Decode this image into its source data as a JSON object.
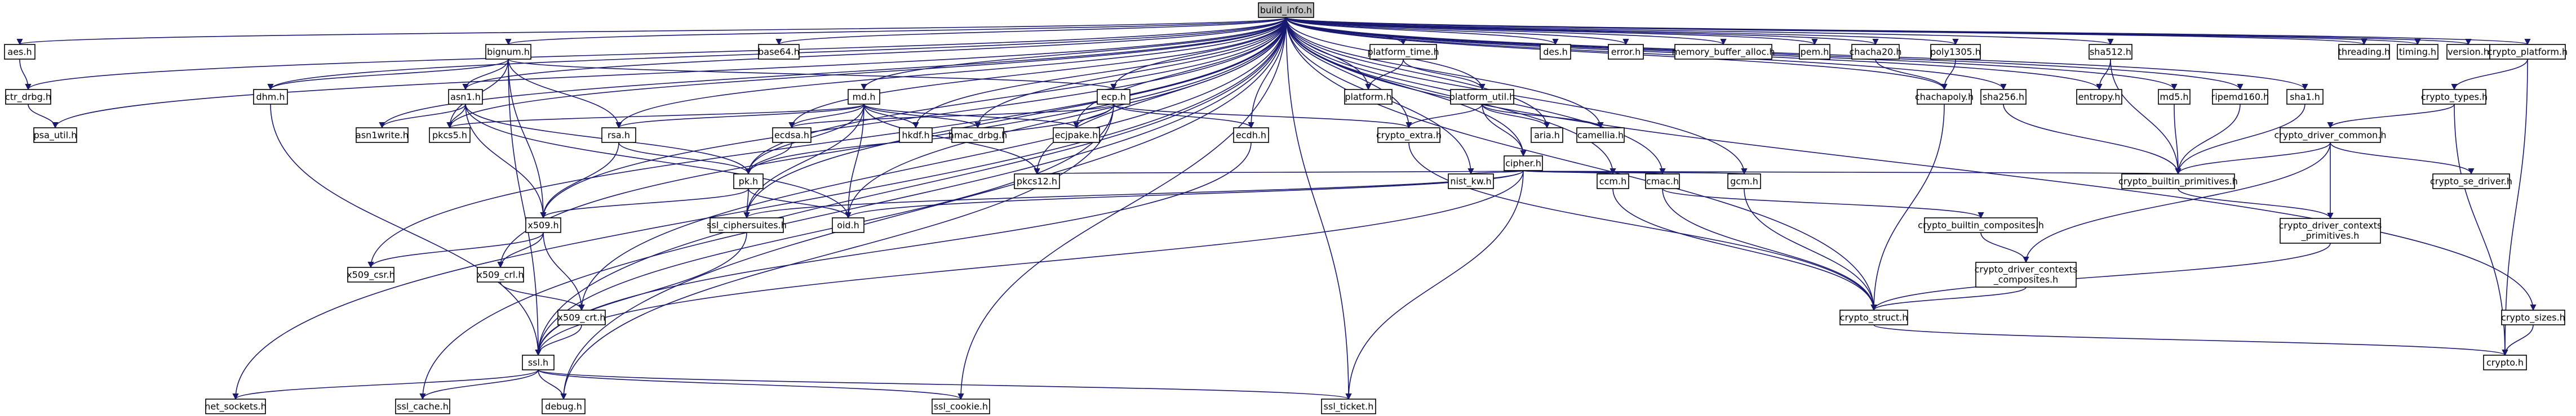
{
  "graph": {
    "root": "build_info.h",
    "edge_color": "#191970",
    "root_fill": "#bfbfbf",
    "nodes": [
      {
        "id": "build_info",
        "label": "build_info.h"
      },
      {
        "id": "aes",
        "label": "aes.h"
      },
      {
        "id": "ctr_drbg",
        "label": "ctr_drbg.h"
      },
      {
        "id": "psa_util",
        "label": "psa_util.h"
      },
      {
        "id": "bignum",
        "label": "bignum.h"
      },
      {
        "id": "dhm",
        "label": "dhm.h"
      },
      {
        "id": "asn1",
        "label": "asn1.h"
      },
      {
        "id": "asn1write",
        "label": "asn1write.h"
      },
      {
        "id": "pkcs5",
        "label": "pkcs5.h"
      },
      {
        "id": "rsa",
        "label": "rsa.h"
      },
      {
        "id": "x509",
        "label": "x509.h"
      },
      {
        "id": "x509_csr",
        "label": "x509_csr.h"
      },
      {
        "id": "x509_crl",
        "label": "x509_crl.h"
      },
      {
        "id": "x509_crt",
        "label": "x509_crt.h"
      },
      {
        "id": "ssl",
        "label": "ssl.h"
      },
      {
        "id": "net_sockets",
        "label": "net_sockets.h"
      },
      {
        "id": "ssl_cache",
        "label": "ssl_cache.h"
      },
      {
        "id": "debug",
        "label": "debug.h"
      },
      {
        "id": "ssl_cookie",
        "label": "ssl_cookie.h"
      },
      {
        "id": "ssl_ticket",
        "label": "ssl_ticket.h"
      },
      {
        "id": "base64",
        "label": "base64.h"
      },
      {
        "id": "md",
        "label": "md.h"
      },
      {
        "id": "ecdsa",
        "label": "ecdsa.h"
      },
      {
        "id": "pk",
        "label": "pk.h"
      },
      {
        "id": "ssl_ciphersuites",
        "label": "ssl_ciphersuites.h"
      },
      {
        "id": "oid",
        "label": "oid.h"
      },
      {
        "id": "hkdf",
        "label": "hkdf.h"
      },
      {
        "id": "hmac_drbg",
        "label": "hmac_drbg.h"
      },
      {
        "id": "pkcs12",
        "label": "pkcs12.h"
      },
      {
        "id": "ecp",
        "label": "ecp.h"
      },
      {
        "id": "ecjpake",
        "label": "ecjpake.h"
      },
      {
        "id": "ecdh",
        "label": "ecdh.h"
      },
      {
        "id": "platform_time",
        "label": "platform_time.h"
      },
      {
        "id": "platform",
        "label": "platform.h"
      },
      {
        "id": "platform_util",
        "label": "platform_util.h"
      },
      {
        "id": "crypto_extra",
        "label": "crypto_extra.h"
      },
      {
        "id": "cipher",
        "label": "cipher.h"
      },
      {
        "id": "nist_kw",
        "label": "nist_kw.h"
      },
      {
        "id": "aria",
        "label": "aria.h"
      },
      {
        "id": "camellia",
        "label": "camellia.h"
      },
      {
        "id": "ccm",
        "label": "ccm.h"
      },
      {
        "id": "cmac",
        "label": "cmac.h"
      },
      {
        "id": "gcm",
        "label": "gcm.h"
      },
      {
        "id": "des",
        "label": "des.h"
      },
      {
        "id": "error",
        "label": "error.h"
      },
      {
        "id": "memory_buffer_alloc",
        "label": "memory_buffer_alloc.h"
      },
      {
        "id": "pem",
        "label": "pem.h"
      },
      {
        "id": "chacha20",
        "label": "chacha20.h"
      },
      {
        "id": "poly1305",
        "label": "poly1305.h"
      },
      {
        "id": "chachapoly",
        "label": "chachapoly.h"
      },
      {
        "id": "sha256",
        "label": "sha256.h"
      },
      {
        "id": "sha512",
        "label": "sha512.h"
      },
      {
        "id": "entropy",
        "label": "entropy.h"
      },
      {
        "id": "md5",
        "label": "md5.h"
      },
      {
        "id": "ripemd160",
        "label": "ripemd160.h"
      },
      {
        "id": "sha1",
        "label": "sha1.h"
      },
      {
        "id": "threading",
        "label": "threading.h"
      },
      {
        "id": "timing",
        "label": "timing.h"
      },
      {
        "id": "version",
        "label": "version.h"
      },
      {
        "id": "crypto_platform",
        "label": "crypto_platform.h"
      },
      {
        "id": "crypto_types",
        "label": "crypto_types.h"
      },
      {
        "id": "crypto_driver_common",
        "label": "crypto_driver_common.h"
      },
      {
        "id": "crypto_builtin_primitives",
        "label": "crypto_builtin_primitives.h"
      },
      {
        "id": "crypto_se_driver",
        "label": "crypto_se_driver.h"
      },
      {
        "id": "crypto_driver_contexts_primitives",
        "label": "crypto_driver_contexts\n_primitives.h"
      },
      {
        "id": "crypto_builtin_composites",
        "label": "crypto_builtin_composites.h"
      },
      {
        "id": "crypto_driver_contexts_composites",
        "label": "crypto_driver_contexts\n_composites.h"
      },
      {
        "id": "crypto_struct",
        "label": "crypto_struct.h"
      },
      {
        "id": "crypto_sizes",
        "label": "crypto_sizes.h"
      },
      {
        "id": "crypto",
        "label": "crypto.h"
      }
    ],
    "edges": [
      [
        "build_info",
        "aes"
      ],
      [
        "build_info",
        "ctr_drbg"
      ],
      [
        "build_info",
        "psa_util"
      ],
      [
        "build_info",
        "bignum"
      ],
      [
        "build_info",
        "dhm"
      ],
      [
        "build_info",
        "asn1"
      ],
      [
        "build_info",
        "asn1write"
      ],
      [
        "build_info",
        "pkcs5"
      ],
      [
        "build_info",
        "rsa"
      ],
      [
        "build_info",
        "x509"
      ],
      [
        "build_info",
        "x509_csr"
      ],
      [
        "build_info",
        "x509_crl"
      ],
      [
        "build_info",
        "x509_crt"
      ],
      [
        "build_info",
        "ssl"
      ],
      [
        "build_info",
        "net_sockets"
      ],
      [
        "build_info",
        "ssl_cache"
      ],
      [
        "build_info",
        "debug"
      ],
      [
        "build_info",
        "ssl_cookie"
      ],
      [
        "build_info",
        "ssl_ticket"
      ],
      [
        "build_info",
        "base64"
      ],
      [
        "build_info",
        "md"
      ],
      [
        "build_info",
        "ecdsa"
      ],
      [
        "build_info",
        "pk"
      ],
      [
        "build_info",
        "ssl_ciphersuites"
      ],
      [
        "build_info",
        "oid"
      ],
      [
        "build_info",
        "hkdf"
      ],
      [
        "build_info",
        "hmac_drbg"
      ],
      [
        "build_info",
        "pkcs12"
      ],
      [
        "build_info",
        "ecp"
      ],
      [
        "build_info",
        "ecjpake"
      ],
      [
        "build_info",
        "ecdh"
      ],
      [
        "build_info",
        "platform_time"
      ],
      [
        "build_info",
        "platform"
      ],
      [
        "build_info",
        "platform_util"
      ],
      [
        "build_info",
        "crypto_extra"
      ],
      [
        "build_info",
        "cipher"
      ],
      [
        "build_info",
        "nist_kw"
      ],
      [
        "build_info",
        "aria"
      ],
      [
        "build_info",
        "camellia"
      ],
      [
        "build_info",
        "ccm"
      ],
      [
        "build_info",
        "cmac"
      ],
      [
        "build_info",
        "gcm"
      ],
      [
        "build_info",
        "des"
      ],
      [
        "build_info",
        "error"
      ],
      [
        "build_info",
        "memory_buffer_alloc"
      ],
      [
        "build_info",
        "pem"
      ],
      [
        "build_info",
        "chacha20"
      ],
      [
        "build_info",
        "poly1305"
      ],
      [
        "build_info",
        "chachapoly"
      ],
      [
        "build_info",
        "sha256"
      ],
      [
        "build_info",
        "sha512"
      ],
      [
        "build_info",
        "entropy"
      ],
      [
        "build_info",
        "md5"
      ],
      [
        "build_info",
        "ripemd160"
      ],
      [
        "build_info",
        "sha1"
      ],
      [
        "build_info",
        "threading"
      ],
      [
        "build_info",
        "timing"
      ],
      [
        "build_info",
        "version"
      ],
      [
        "build_info",
        "crypto_platform"
      ],
      [
        "build_info",
        "crypto_sizes"
      ],
      [
        "build_info",
        "crypto_struct"
      ],
      [
        "aes",
        "ctr_drbg"
      ],
      [
        "ctr_drbg",
        "psa_util"
      ],
      [
        "bignum",
        "dhm"
      ],
      [
        "bignum",
        "asn1"
      ],
      [
        "bignum",
        "rsa"
      ],
      [
        "bignum",
        "ecp"
      ],
      [
        "bignum",
        "x509"
      ],
      [
        "bignum",
        "pkcs5"
      ],
      [
        "bignum",
        "ssl"
      ],
      [
        "dhm",
        "ssl"
      ],
      [
        "asn1",
        "asn1write"
      ],
      [
        "asn1",
        "pkcs5"
      ],
      [
        "asn1",
        "pk"
      ],
      [
        "asn1",
        "x509"
      ],
      [
        "asn1",
        "oid"
      ],
      [
        "rsa",
        "pk"
      ],
      [
        "rsa",
        "x509"
      ],
      [
        "x509",
        "x509_csr"
      ],
      [
        "x509",
        "x509_crl"
      ],
      [
        "x509",
        "x509_crt"
      ],
      [
        "x509_crl",
        "x509_crt"
      ],
      [
        "x509_crt",
        "ssl"
      ],
      [
        "ssl",
        "net_sockets"
      ],
      [
        "ssl",
        "ssl_cache"
      ],
      [
        "ssl",
        "debug"
      ],
      [
        "ssl",
        "ssl_cookie"
      ],
      [
        "ssl",
        "ssl_ticket"
      ],
      [
        "md",
        "rsa"
      ],
      [
        "md",
        "ecdsa"
      ],
      [
        "md",
        "pk"
      ],
      [
        "md",
        "hkdf"
      ],
      [
        "md",
        "hmac_drbg"
      ],
      [
        "md",
        "pkcs12"
      ],
      [
        "md",
        "ecjpake"
      ],
      [
        "md",
        "oid"
      ],
      [
        "md",
        "ssl_ciphersuites"
      ],
      [
        "md",
        "pkcs5"
      ],
      [
        "ecp",
        "ecdsa"
      ],
      [
        "ecp",
        "ecjpake"
      ],
      [
        "ecp",
        "ecdh"
      ],
      [
        "ecp",
        "pk"
      ],
      [
        "ecp",
        "ssl"
      ],
      [
        "ecp",
        "crypto_extra"
      ],
      [
        "ecp",
        "debug"
      ],
      [
        "ecdsa",
        "pk"
      ],
      [
        "pk",
        "x509"
      ],
      [
        "pk",
        "ssl_ciphersuites"
      ],
      [
        "pk",
        "oid"
      ],
      [
        "ssl_ciphersuites",
        "ssl"
      ],
      [
        "ecdh",
        "ssl"
      ],
      [
        "platform_time",
        "platform"
      ],
      [
        "platform_time",
        "platform_util"
      ],
      [
        "platform_util",
        "crypto_extra"
      ],
      [
        "platform_util",
        "cipher"
      ],
      [
        "platform_util",
        "aria"
      ],
      [
        "platform_util",
        "camellia"
      ],
      [
        "crypto_extra",
        "crypto_struct"
      ],
      [
        "cipher",
        "nist_kw"
      ],
      [
        "cipher",
        "ccm"
      ],
      [
        "cipher",
        "cmac"
      ],
      [
        "cipher",
        "gcm"
      ],
      [
        "cipher",
        "pkcs12"
      ],
      [
        "cipher",
        "ssl_ciphersuites"
      ],
      [
        "cipher",
        "oid"
      ],
      [
        "cipher",
        "ssl_ticket"
      ],
      [
        "cipher",
        "crypto_builtin_primitives"
      ],
      [
        "cipher",
        "ssl"
      ],
      [
        "ccm",
        "crypto_struct"
      ],
      [
        "cmac",
        "crypto_struct"
      ],
      [
        "cmac",
        "crypto_builtin_composites"
      ],
      [
        "gcm",
        "crypto_struct"
      ],
      [
        "chacha20",
        "chachapoly"
      ],
      [
        "poly1305",
        "chachapoly"
      ],
      [
        "chachapoly",
        "crypto_struct"
      ],
      [
        "sha256",
        "crypto_builtin_primitives"
      ],
      [
        "sha512",
        "entropy"
      ],
      [
        "sha512",
        "crypto_builtin_primitives"
      ],
      [
        "md5",
        "crypto_builtin_primitives"
      ],
      [
        "ripemd160",
        "crypto_builtin_primitives"
      ],
      [
        "sha1",
        "crypto_builtin_primitives"
      ],
      [
        "crypto_platform",
        "crypto_types"
      ],
      [
        "crypto_platform",
        "crypto"
      ],
      [
        "crypto_types",
        "crypto_driver_common"
      ],
      [
        "crypto_types",
        "crypto"
      ],
      [
        "crypto_driver_common",
        "crypto_builtin_primitives"
      ],
      [
        "crypto_driver_common",
        "crypto_se_driver"
      ],
      [
        "crypto_driver_common",
        "crypto_driver_contexts_primitives"
      ],
      [
        "crypto_driver_common",
        "crypto_driver_contexts_composites"
      ],
      [
        "crypto_builtin_primitives",
        "crypto_driver_contexts_primitives"
      ],
      [
        "crypto_driver_contexts_primitives",
        "crypto_struct"
      ],
      [
        "crypto_builtin_composites",
        "crypto_driver_contexts_composites"
      ],
      [
        "crypto_driver_contexts_composites",
        "crypto_struct"
      ],
      [
        "crypto_struct",
        "crypto"
      ],
      [
        "crypto_sizes",
        "crypto"
      ]
    ]
  }
}
